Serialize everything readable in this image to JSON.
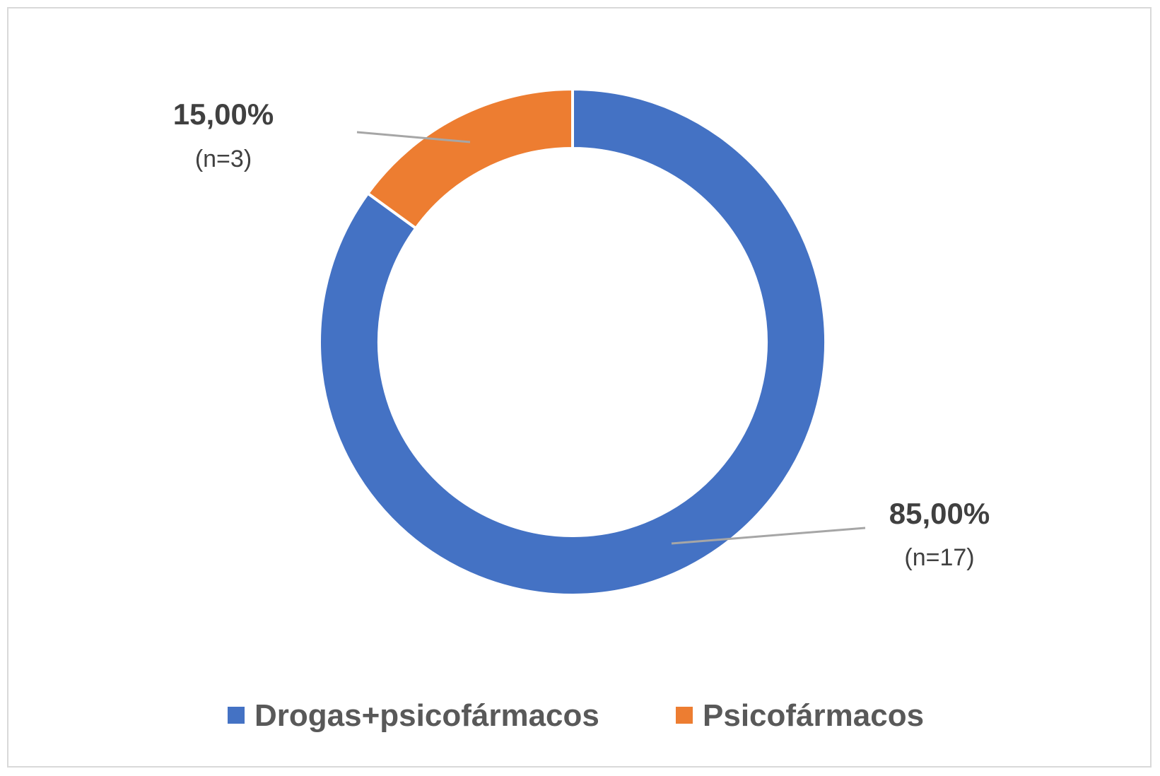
{
  "chart_data": {
    "type": "pie",
    "variant": "donut",
    "title": "",
    "slices": [
      {
        "label": "Drogas+psicofármacos",
        "value": 85.0,
        "percent_label": "85,00%",
        "count_label": "(n=17)",
        "color": "#4472C4"
      },
      {
        "label": "Psicofármacos",
        "value": 15.0,
        "percent_label": "15,00%",
        "count_label": "(n=3)",
        "color": "#ED7D31"
      }
    ],
    "legend": {
      "placement": "bottom",
      "entries": [
        "Drogas+psicofármacos",
        "Psicofármacos"
      ]
    }
  }
}
